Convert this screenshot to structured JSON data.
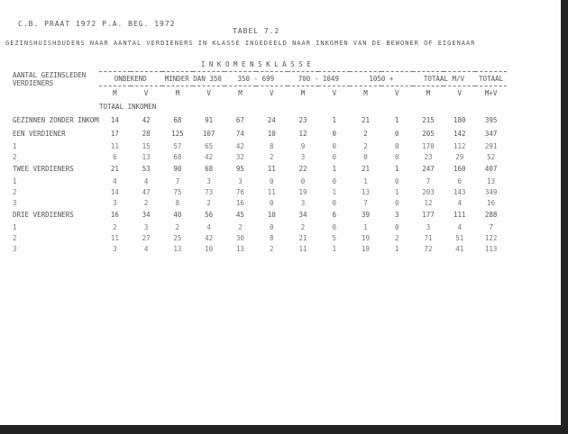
{
  "header": {
    "line1": "C.B. PRAAT 1972 P.A. BEG. 1972",
    "table_no": "TABEL 7.2",
    "line2": "GEZINSHUISHOUDENS NAAR AANTAL VERDIENERS IN KLASSE INGEDEELD NAAR INKOMEN VAN DE BEWONER OF EIGENAAR"
  },
  "table": {
    "row_header": "AANTAL GEZINSLEDEN VERDIENERS",
    "group_header": "I N K O M E N S K L A S S E",
    "column_groups": [
      "ONBEKEND",
      "MINDER DAN 350",
      "350 - 699",
      "700 - 1049",
      "1050 +",
      "TOTAAL M/V",
      "TOTAAL"
    ],
    "subheaders": [
      "M",
      "V",
      "M",
      "V",
      "M",
      "V",
      "M",
      "V",
      "M",
      "V",
      "M",
      "V",
      "M+V"
    ],
    "section_label": "TOTAAL INKOMEN",
    "rows": [
      {
        "label": "GEZINNEN ZONDER INKOMEN",
        "cells": [
          "14",
          "42",
          "68",
          "91",
          "67",
          "24",
          "23",
          "1",
          "21",
          "1",
          "215",
          "180",
          "395"
        ]
      },
      {
        "label": "EEN VERDIENER",
        "cells": [
          "17",
          "28",
          "125",
          "107",
          "74",
          "10",
          "12",
          "0",
          "2",
          "0",
          "205",
          "142",
          "347"
        ]
      },
      {
        "label": "1",
        "cells": [
          "11",
          "15",
          "57",
          "65",
          "42",
          "8",
          "9",
          "0",
          "2",
          "0",
          "170",
          "112",
          "291"
        ]
      },
      {
        "label": "2",
        "cells": [
          "6",
          "13",
          "68",
          "42",
          "32",
          "2",
          "3",
          "0",
          "0",
          "0",
          "23",
          "29",
          "52"
        ]
      },
      {
        "label": "TWEE VERDIENERS",
        "cells": [
          "21",
          "53",
          "90",
          "68",
          "95",
          "11",
          "22",
          "1",
          "21",
          "1",
          "247",
          "160",
          "407"
        ]
      },
      {
        "label": "1",
        "cells": [
          "4",
          "4",
          "7",
          "3",
          "3",
          "0",
          "0",
          "0",
          "1",
          "0",
          "7",
          "6",
          "13"
        ]
      },
      {
        "label": "2",
        "cells": [
          "14",
          "47",
          "75",
          "73",
          "76",
          "11",
          "19",
          "1",
          "13",
          "1",
          "203",
          "143",
          "349"
        ]
      },
      {
        "label": "3",
        "cells": [
          "3",
          "2",
          "8",
          "2",
          "16",
          "0",
          "3",
          "0",
          "7",
          "0",
          "12",
          "4",
          "16"
        ]
      },
      {
        "label": "DRIE VERDIENERS",
        "cells": [
          "16",
          "34",
          "40",
          "56",
          "45",
          "10",
          "34",
          "6",
          "39",
          "3",
          "177",
          "111",
          "288"
        ]
      },
      {
        "label": "1",
        "cells": [
          "2",
          "3",
          "2",
          "4",
          "2",
          "0",
          "2",
          "0",
          "1",
          "0",
          "3",
          "4",
          "7"
        ]
      },
      {
        "label": "2",
        "cells": [
          "11",
          "27",
          "25",
          "42",
          "30",
          "8",
          "21",
          "5",
          "19",
          "2",
          "71",
          "51",
          "122"
        ]
      },
      {
        "label": "3",
        "cells": [
          "3",
          "4",
          "13",
          "10",
          "13",
          "2",
          "11",
          "1",
          "19",
          "1",
          "72",
          "41",
          "113"
        ]
      }
    ]
  }
}
